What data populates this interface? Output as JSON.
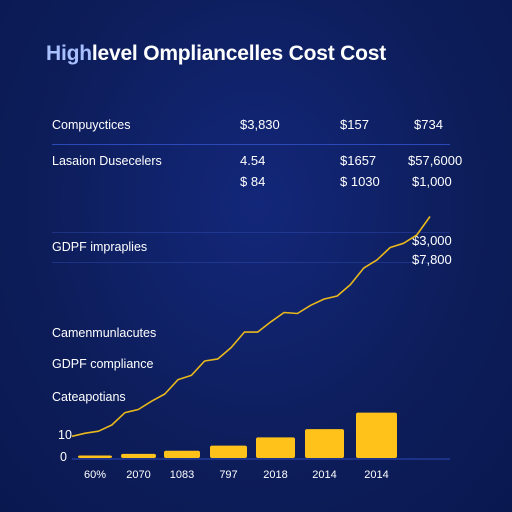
{
  "title": {
    "accent": "High",
    "rest": "level Ompliancelles Cost Cost"
  },
  "table": {
    "rows": [
      {
        "label": "Compuyctices",
        "values": [
          "$3,830",
          "$157",
          "$734"
        ]
      },
      {
        "label": "Lasaion Dusecelers",
        "values": [
          "4.54",
          "$1657",
          "$57,6000"
        ]
      },
      {
        "label": "",
        "values": [
          "$ 84",
          "$ 1030",
          "$1,000"
        ]
      }
    ]
  },
  "side_labels": {
    "gdpr_top": "GDPF impraplies",
    "camp": "Camenmunlacutes",
    "gdpr_compliance": "GDPF compliance",
    "cat": "Cateapotians",
    "y_ten": "10",
    "y_zero": "0"
  },
  "annotations": [
    "$3,000",
    "$7,800"
  ],
  "colors": {
    "bar": "#ffc21a",
    "line": "#e8b81c",
    "background": "#0e1f5c",
    "rule": "#2b49b8"
  },
  "chart_data": {
    "type": "bar",
    "categories": [
      "60%",
      "2070",
      "1083",
      "797",
      "2018",
      "2014",
      "2014"
    ],
    "values": [
      1.2,
      2.0,
      3.5,
      6.0,
      10.0,
      14.0,
      22.0
    ],
    "line_series": {
      "values": [
        10.5,
        12.0,
        13.0,
        16.0,
        22.0,
        23.5,
        27.5,
        31.0,
        38.0,
        40.0,
        47.0,
        48.0,
        53.5,
        61.0,
        61.0,
        66.0,
        70.5,
        70.0,
        74.0,
        77.0,
        78.5,
        84.0,
        92.0,
        96.0,
        102.0,
        104.0,
        108.0,
        117.0
      ]
    },
    "ylim": [
      0,
      125
    ]
  }
}
